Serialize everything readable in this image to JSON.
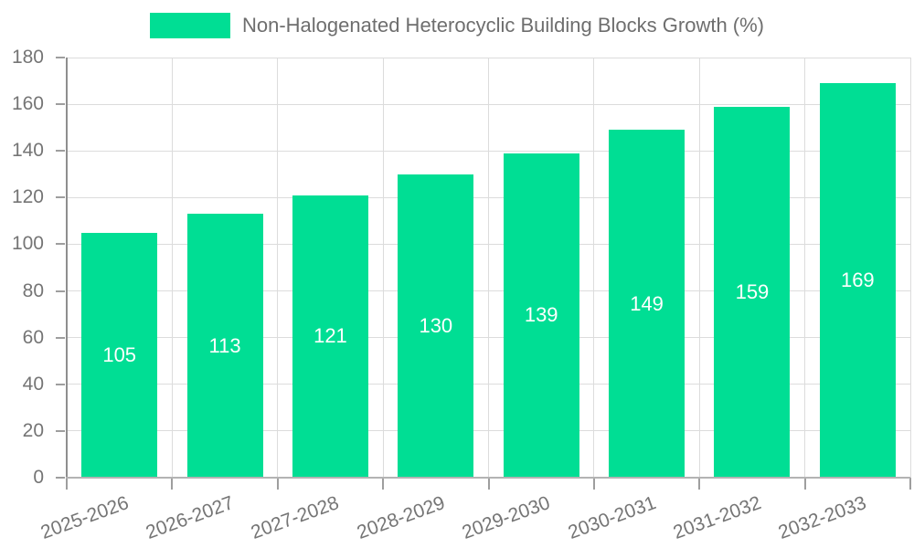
{
  "chart_data": {
    "type": "bar",
    "series_name": "Non-Halogenated Heterocyclic Building Blocks Growth (%)",
    "categories": [
      "2025-2026",
      "2026-2027",
      "2027-2028",
      "2028-2029",
      "2029-2030",
      "2030-2031",
      "2031-2032",
      "2032-2033"
    ],
    "values": [
      105,
      113,
      121,
      130,
      139,
      149,
      159,
      169
    ],
    "title": "",
    "xlabel": "",
    "ylabel": "",
    "ylim": [
      0,
      180
    ],
    "yticks": [
      0,
      20,
      40,
      60,
      80,
      100,
      120,
      140,
      160,
      180
    ],
    "grid": true,
    "legend_position": "top-center",
    "value_labels": "inside-center",
    "style": {
      "bar_color": "#00DE94",
      "value_label_color": "#ffffff",
      "grid_color": "#dcdcdc",
      "y_axis_color": "#8f8f8f",
      "x_axis_color": "#b3b3b3",
      "tick_color": "#9e9e9e",
      "axis_text_color": "#757575",
      "legend_text_color": "#6e6e6e",
      "background_color": "#ffffff"
    }
  }
}
